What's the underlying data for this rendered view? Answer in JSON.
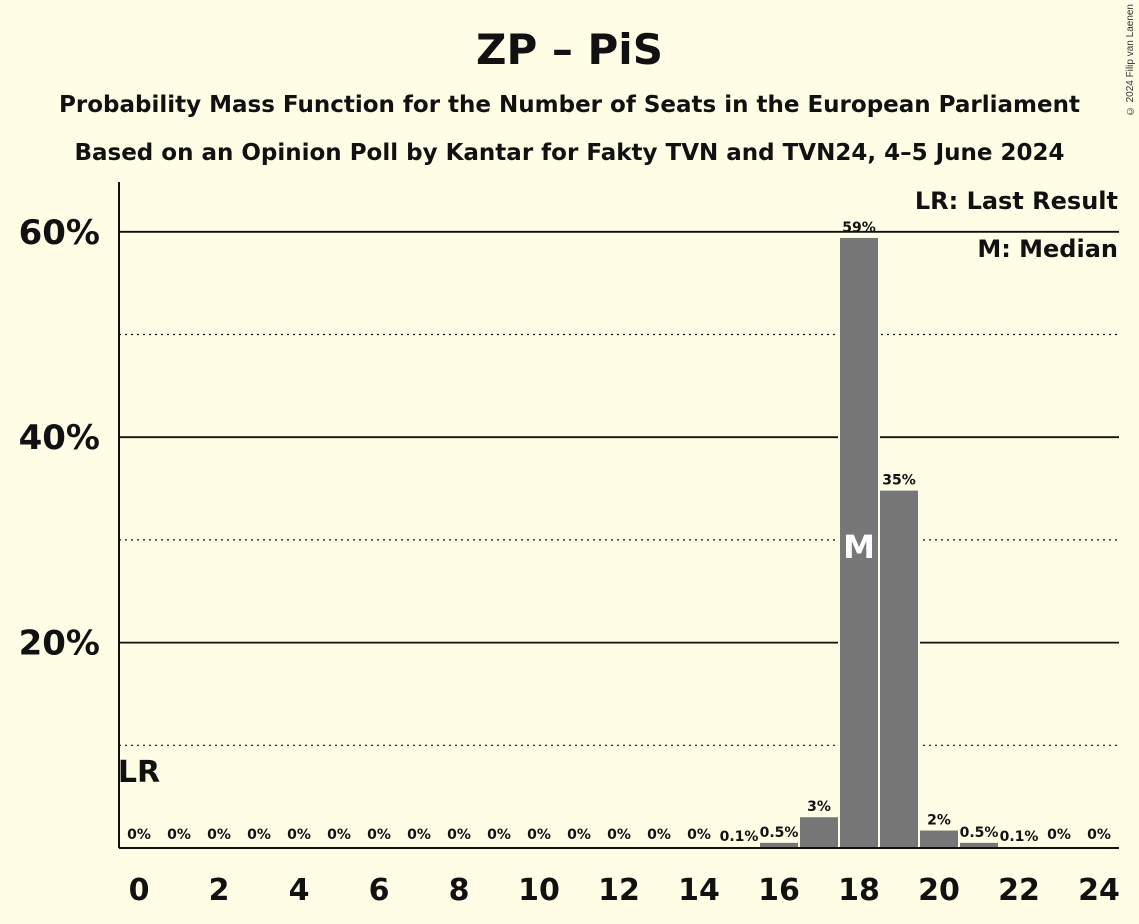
{
  "copyright": "© 2024 Filip van Laenen",
  "chart_data": {
    "type": "bar",
    "title": "ZP – PiS",
    "subtitle_lines": [
      "Probability Mass Function for the Number of Seats in the European Parliament",
      "Based on an Opinion Poll by Kantar for Fakty TVN and TVN24, 4–5 June 2024"
    ],
    "xlabel": "",
    "ylabel": "",
    "x": [
      0,
      1,
      2,
      3,
      4,
      5,
      6,
      7,
      8,
      9,
      10,
      11,
      12,
      13,
      14,
      15,
      16,
      17,
      18,
      19,
      20,
      21,
      22,
      23,
      24
    ],
    "values": [
      0,
      0,
      0,
      0,
      0,
      0,
      0,
      0,
      0,
      0,
      0,
      0,
      0,
      0,
      0,
      0.1,
      0.5,
      3,
      59.4,
      34.8,
      1.7,
      0.5,
      0.1,
      0,
      0
    ],
    "data_labels": [
      "0%",
      "0%",
      "0%",
      "0%",
      "0%",
      "0%",
      "0%",
      "0%",
      "0%",
      "0%",
      "0%",
      "0%",
      "0%",
      "0%",
      "0%",
      "0.1%",
      "0.5%",
      "3%",
      "59%",
      "35%",
      "2%",
      "0.5%",
      "0.1%",
      "0%",
      "0%"
    ],
    "x_tick_labels": [
      "0",
      "2",
      "4",
      "6",
      "8",
      "10",
      "12",
      "14",
      "16",
      "18",
      "20",
      "22",
      "24"
    ],
    "x_tick_values": [
      0,
      2,
      4,
      6,
      8,
      10,
      12,
      14,
      16,
      18,
      20,
      22,
      24
    ],
    "y_tick_labels": [
      "20%",
      "40%",
      "60%"
    ],
    "y_tick_values": [
      20,
      40,
      60
    ],
    "ylim": [
      0,
      65
    ],
    "grid_solid": [
      20,
      40,
      60
    ],
    "grid_dotted": [
      10,
      30,
      50
    ],
    "last_result": {
      "seat": 0,
      "marker": "LR"
    },
    "median": {
      "seat": 18,
      "marker": "M"
    },
    "legend": [
      "LR: Last Result",
      "M: Median"
    ],
    "legend_position": "top-right",
    "colors": {
      "bar": "#777777",
      "background": "#fffde6",
      "axis": "#111111",
      "marker_text": "#ffffff"
    }
  }
}
